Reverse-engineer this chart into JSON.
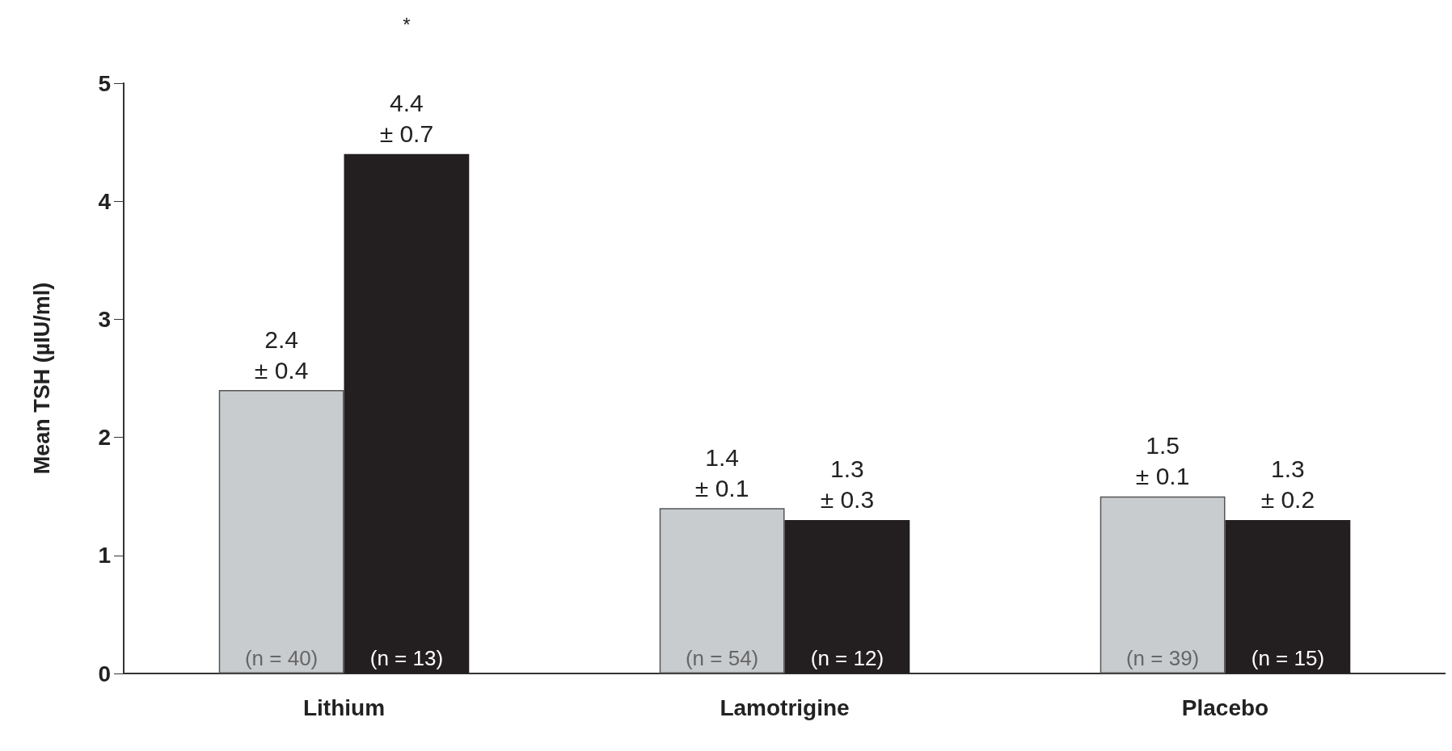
{
  "chart_data": {
    "type": "bar",
    "ylabel": "Mean TSH (µIU/ml)",
    "categories": [
      "Lithium",
      "Lamotrigine",
      "Placebo"
    ],
    "series": [
      {
        "color": "#c9cccf",
        "values": [
          2.4,
          1.4,
          1.5
        ],
        "value_labels": [
          "2.4\n± 0.4",
          "1.4\n± 0.1",
          "1.5\n± 0.1"
        ]
      },
      {
        "color": "#231f20",
        "values": [
          4.4,
          1.3,
          1.3
        ],
        "value_labels": [
          "4.4\n± 0.7",
          "1.3\n± 0.3",
          "1.3\n± 0.2"
        ]
      }
    ],
    "ylim": [
      0,
      5
    ],
    "yticks": [
      0,
      1,
      2,
      3,
      4,
      5
    ],
    "grid": false,
    "annotations": [
      "*",
      {
        "text": "(n = 40)",
        "x": "Lithium",
        "y": 0
      },
      {
        "text": "(n = 13)",
        "x": "Lithium",
        "y": 0
      },
      {
        "text": "(n = 54)",
        "x": "Lamotrigine",
        "y": 0
      },
      {
        "text": "(n = 12)",
        "x": "Lamotrigine",
        "y": 0
      },
      {
        "text": "(n = 39)",
        "x": "Placebo",
        "y": 0
      },
      {
        "text": "(n = 15)",
        "x": "Placebo",
        "y": 0
      }
    ]
  }
}
